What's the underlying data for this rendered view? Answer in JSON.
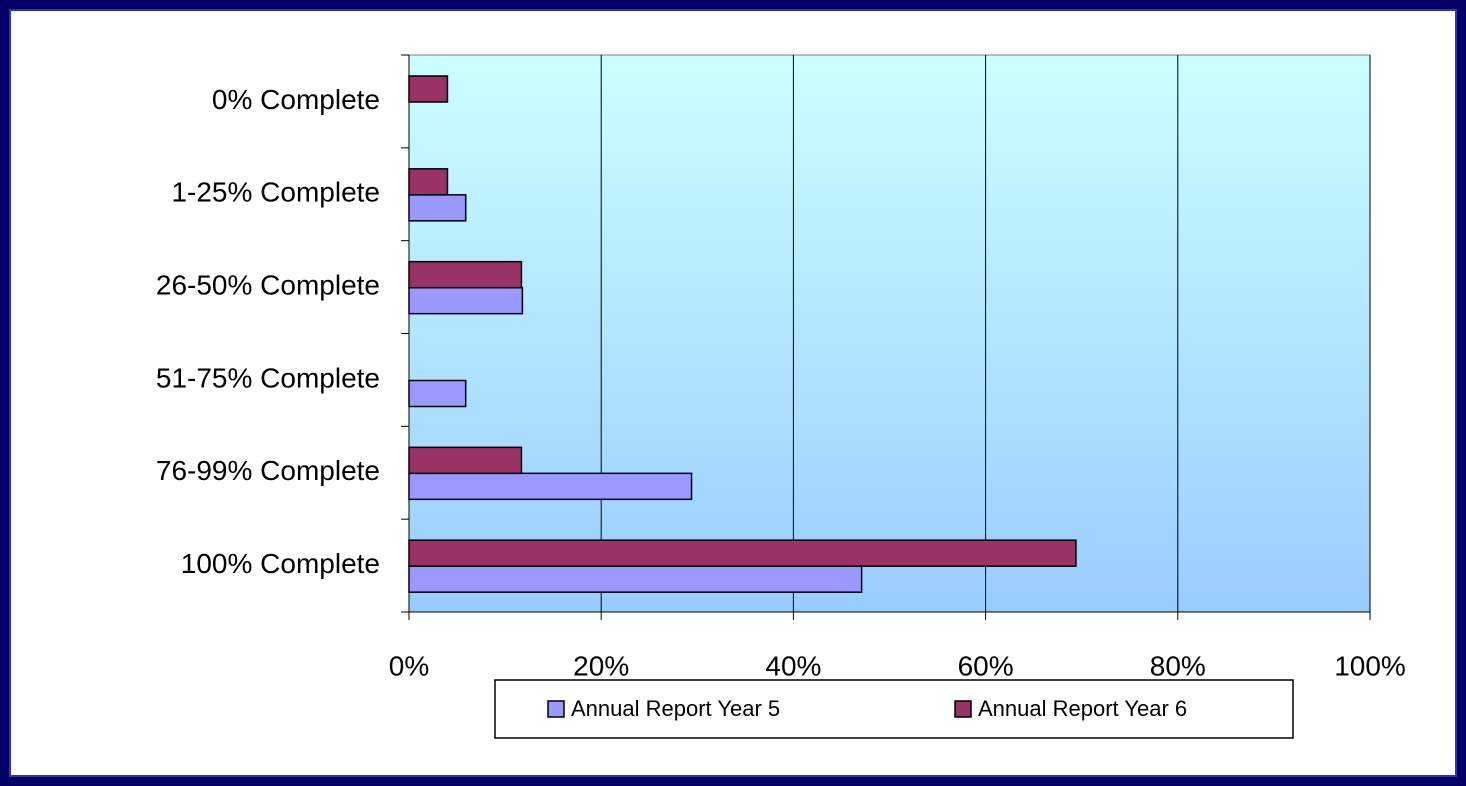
{
  "chart_data": {
    "type": "hbar",
    "categories": [
      "0% Complete",
      "1-25% Complete",
      "26-50% Complete",
      "51-75% Complete",
      "76-99% Complete",
      "100% Complete"
    ],
    "series": [
      {
        "name": "Annual Report Year 5",
        "color": "#9999ff",
        "values": [
          0,
          5.9,
          11.8,
          5.9,
          29.4,
          47.1
        ]
      },
      {
        "name": "Annual Report Year 6",
        "color": "#993366",
        "values": [
          4,
          4,
          11.7,
          0,
          11.7,
          69.4
        ]
      }
    ],
    "xlim": [
      0,
      100
    ],
    "xticks": [
      {
        "value": 0,
        "label": "0%"
      },
      {
        "value": 20,
        "label": "20%"
      },
      {
        "value": 40,
        "label": "40%"
      },
      {
        "value": 60,
        "label": "60%"
      },
      {
        "value": 80,
        "label": "80%"
      },
      {
        "value": 100,
        "label": "100%"
      }
    ],
    "grid": true,
    "legend": "bottom"
  }
}
